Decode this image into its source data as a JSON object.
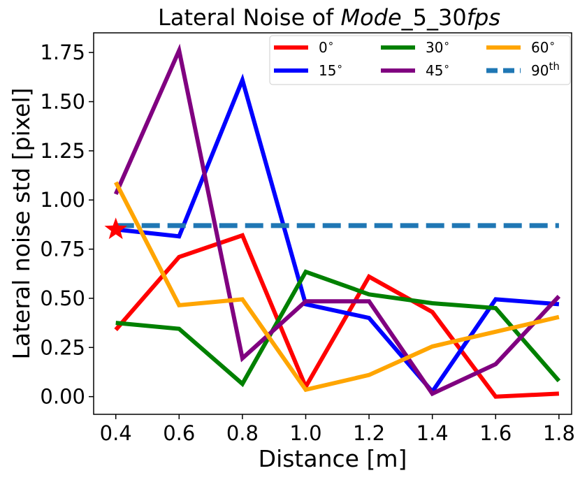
{
  "chart_data": {
    "type": "line",
    "title": "Lateral Noise of ",
    "title_italic": "Mode",
    "title_suffix": "_5_30",
    "title_italic_suffix": "fps",
    "xlabel": "Distance [m]",
    "ylabel": "Lateral noise std [pixel]",
    "xlim": [
      0.33,
      1.84
    ],
    "ylim": [
      -0.09,
      1.85
    ],
    "x": [
      0.4,
      0.6,
      0.8,
      1.0,
      1.2,
      1.4,
      1.6,
      1.8
    ],
    "x_tick_labels": [
      "0.4",
      "0.6",
      "0.8",
      "1.0",
      "1.2",
      "1.4",
      "1.6",
      "1.8"
    ],
    "y_ticks": [
      0.0,
      0.25,
      0.5,
      0.75,
      1.0,
      1.25,
      1.5,
      1.75
    ],
    "y_tick_labels": [
      "0.00",
      "0.25",
      "0.50",
      "0.75",
      "1.00",
      "1.25",
      "1.50",
      "1.75"
    ],
    "series": [
      {
        "name": "0",
        "sup": "∘",
        "color": "#ff0000",
        "values": [
          0.34,
          0.71,
          0.82,
          0.05,
          0.61,
          0.43,
          0.0,
          0.015
        ]
      },
      {
        "name": "15",
        "sup": "∘",
        "color": "#0000ff",
        "values": [
          0.85,
          0.815,
          1.61,
          0.47,
          0.4,
          0.025,
          0.495,
          0.47
        ]
      },
      {
        "name": "30",
        "sup": "∘",
        "color": "#008000",
        "values": [
          0.375,
          0.345,
          0.065,
          0.635,
          0.52,
          0.475,
          0.45,
          0.08
        ]
      },
      {
        "name": "45",
        "sup": "∘",
        "color": "#800080",
        "values": [
          1.03,
          1.76,
          0.195,
          0.485,
          0.485,
          0.015,
          0.165,
          0.51
        ]
      },
      {
        "name": "60",
        "sup": "∘",
        "color": "#ffa500",
        "values": [
          1.09,
          0.465,
          0.495,
          0.035,
          0.11,
          0.255,
          0.33,
          0.405
        ]
      }
    ],
    "reference_line": {
      "name": "90",
      "sup": "th",
      "value": 0.87,
      "color": "#1f77b4",
      "style": "dashed"
    },
    "marker": {
      "shape": "star",
      "x": 0.4,
      "y": 0.85,
      "color": "#ff0000"
    },
    "legend": {
      "placement": "top-right",
      "columns": 3
    }
  }
}
